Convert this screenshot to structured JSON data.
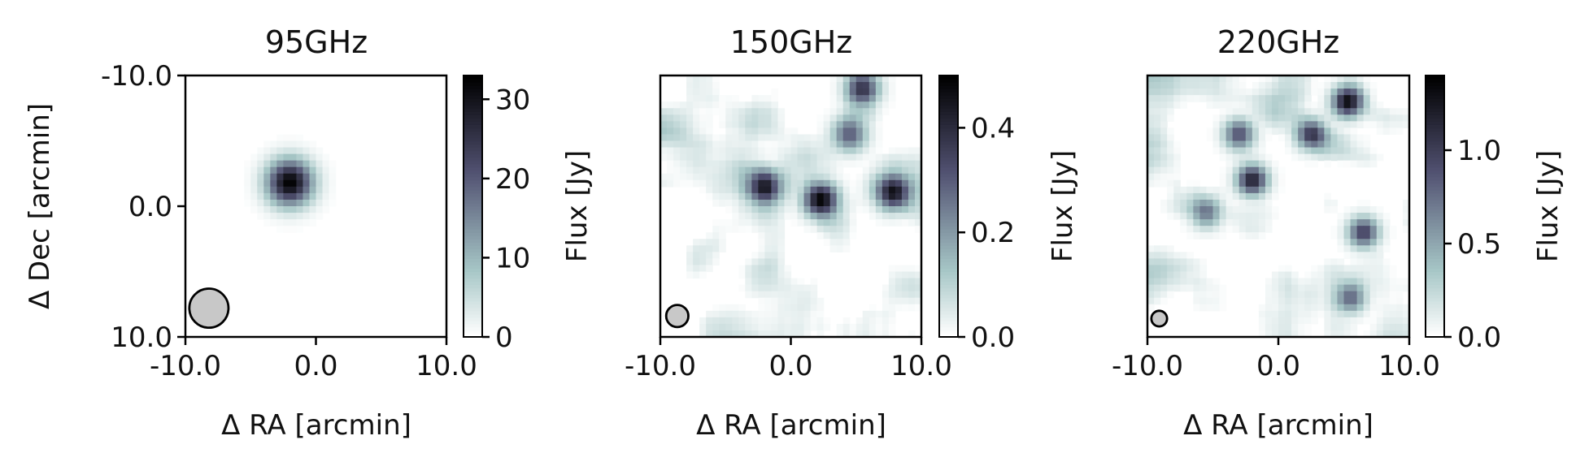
{
  "figure": {
    "shared_ylabel": "Δ Dec [arcmin]"
  },
  "chart_data": [
    {
      "type": "heatmap",
      "title": "95GHz",
      "xlabel": "Δ RA [arcmin]",
      "ylabel": "Δ Dec [arcmin]",
      "xlim": [
        -10.0,
        10.0
      ],
      "ylim": [
        10.0,
        -10.0
      ],
      "x_ticks": [
        "-10.0",
        "0.0",
        "10.0"
      ],
      "y_ticks": [
        "-10.0",
        "0.0",
        "10.0"
      ],
      "colorbar": {
        "label": "Flux [Jy]",
        "range": [
          0,
          33
        ],
        "ticks": [
          "0",
          "10",
          "20",
          "30"
        ],
        "tick_values": [
          0,
          10,
          20,
          30
        ],
        "colormap": "bone_r"
      },
      "grid_size": 40,
      "sources": [
        {
          "x": -2.0,
          "y": -1.8,
          "peak": 33
        }
      ],
      "background": "smooth, near zero",
      "beam": {
        "x": -8.2,
        "y": 7.8,
        "diameter_arcmin": 3.0
      },
      "grid": false
    },
    {
      "type": "heatmap",
      "title": "150GHz",
      "xlabel": "Δ RA [arcmin]",
      "xlim": [
        -10.0,
        10.0
      ],
      "ylim": [
        10.0,
        -10.0
      ],
      "x_ticks": [
        "-10.0",
        "0.0",
        "10.0"
      ],
      "colorbar": {
        "label": "Flux [Jy]",
        "range": [
          0.0,
          0.5
        ],
        "ticks": [
          "0.0",
          "0.2",
          "0.4"
        ],
        "tick_values": [
          0.0,
          0.2,
          0.4
        ],
        "colormap": "bone_r"
      },
      "grid_size": 40,
      "sources": [
        {
          "x": -2.0,
          "y": -1.5,
          "peak": 0.42
        },
        {
          "x": 2.3,
          "y": -0.5,
          "peak": 0.5
        },
        {
          "x": 7.8,
          "y": -1.0,
          "peak": 0.42
        },
        {
          "x": 4.5,
          "y": -5.5,
          "peak": 0.3
        },
        {
          "x": 5.5,
          "y": -9.0,
          "peak": 0.35
        }
      ],
      "background": "noisy, mean ~0.1 Jy",
      "beam": {
        "x": -8.7,
        "y": 8.4,
        "diameter_arcmin": 1.7
      },
      "grid": false
    },
    {
      "type": "heatmap",
      "title": "220GHz",
      "xlabel": "Δ RA [arcmin]",
      "xlim": [
        -10.0,
        10.0
      ],
      "ylim": [
        10.0,
        -10.0
      ],
      "x_ticks": [
        "-10.0",
        "0.0",
        "10.0"
      ],
      "colorbar": {
        "label": "Flux [Jy]",
        "range": [
          0.0,
          1.4
        ],
        "ticks": [
          "0.0",
          "0.5",
          "1.0"
        ],
        "tick_values": [
          0.0,
          0.5,
          1.0
        ],
        "colormap": "bone_r"
      },
      "grid_size": 40,
      "sources": [
        {
          "x": 5.3,
          "y": -8.0,
          "peak": 1.35
        },
        {
          "x": -2.0,
          "y": -2.0,
          "peak": 1.2
        },
        {
          "x": 2.5,
          "y": -5.5,
          "peak": 1.0
        },
        {
          "x": -3.0,
          "y": -5.5,
          "peak": 0.9
        },
        {
          "x": 6.5,
          "y": 2.0,
          "peak": 1.0
        },
        {
          "x": 5.5,
          "y": 7.0,
          "peak": 0.8
        },
        {
          "x": -5.5,
          "y": 0.5,
          "peak": 0.7
        }
      ],
      "background": "noisy, mean ~0.3 Jy",
      "beam": {
        "x": -9.1,
        "y": 8.6,
        "diameter_arcmin": 1.2
      },
      "grid": false
    }
  ]
}
